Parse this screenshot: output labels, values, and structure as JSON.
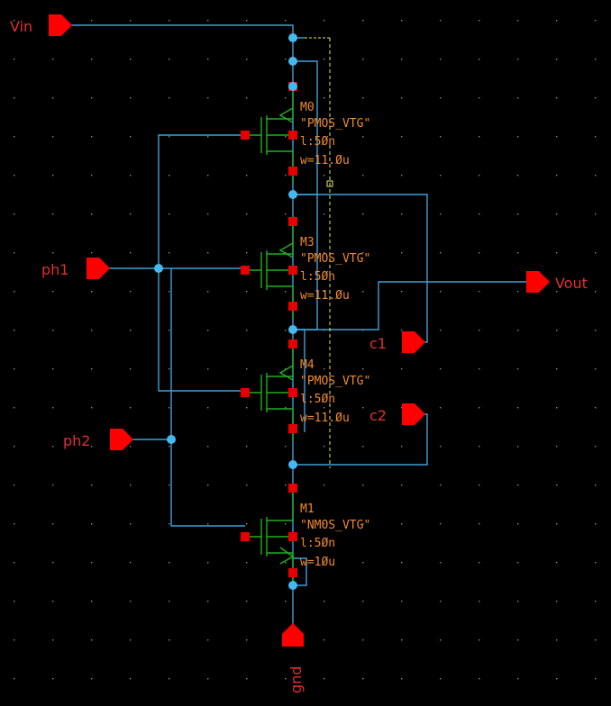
{
  "colors": {
    "background": "#000000",
    "wire": "#3f9fd8",
    "junction": "#45b8f0",
    "device": "#20b020",
    "terminal": "#e60000",
    "pin": "#ff0000",
    "pin_label": "#e03030",
    "instance_label": "#f08a28",
    "selection": "#e8e85a",
    "grid": "#8a8a8a"
  },
  "pins": {
    "vin": "Vin",
    "ph1": "ph1",
    "ph2": "ph2",
    "vout": "Vout",
    "c1": "c1",
    "c2": "c2",
    "gnd": "gnd"
  },
  "transistors": [
    {
      "name": "M0",
      "model": "\"PMOS_VTG\"",
      "length": "l:5Øn",
      "width": "w=11.Øu",
      "type": "pmos"
    },
    {
      "name": "M3",
      "model": "\"PMOS_VTG\"",
      "length": "l:5Øn",
      "width": "w=11.Øu",
      "type": "pmos"
    },
    {
      "name": "M4",
      "model": "\"PMOS_VTG\"",
      "length": "l:5Øn",
      "width": "w=11.Øu",
      "type": "pmos"
    },
    {
      "name": "M1",
      "model": "\"NMOS_VTG\"",
      "length": "l:5Øn",
      "width": "w=1Øu",
      "type": "nmos"
    }
  ]
}
